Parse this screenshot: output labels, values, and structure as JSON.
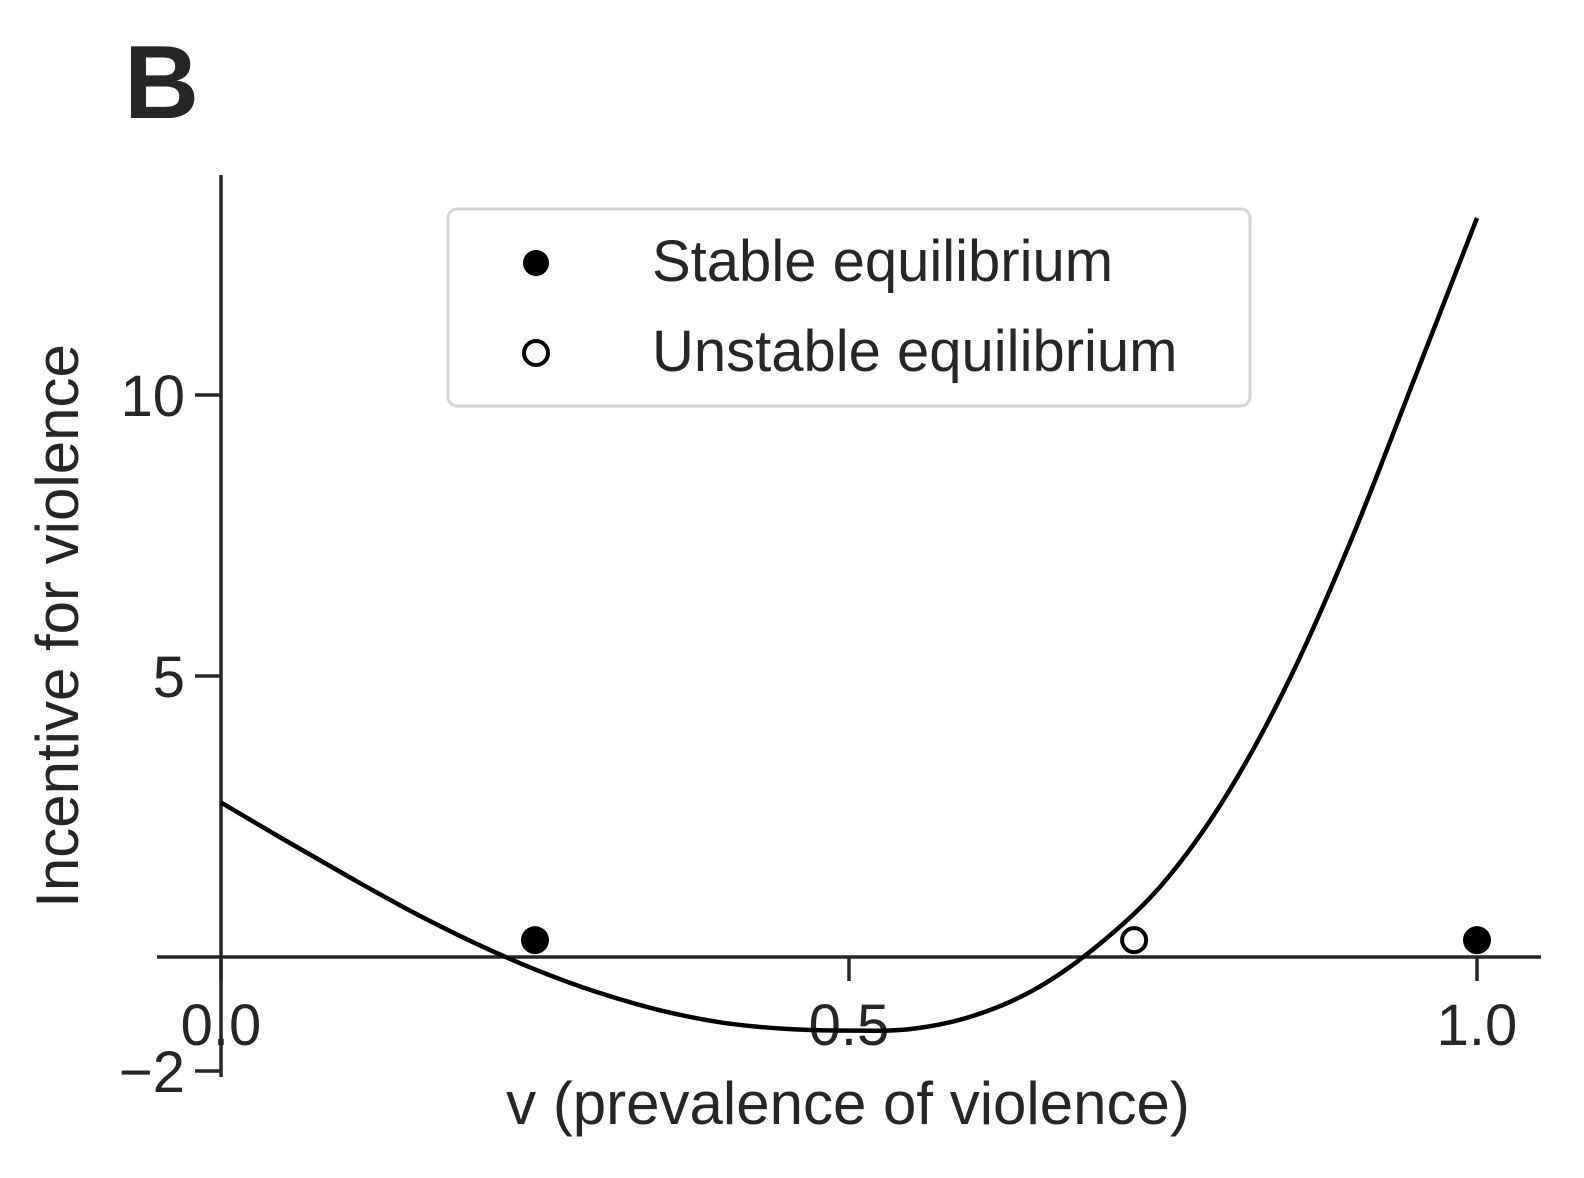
{
  "panel_label": "B",
  "chart_data": {
    "type": "line",
    "title": "",
    "xlabel": "v (prevalence of violence)",
    "ylabel": "Incentive for violence",
    "xlim": [
      -0.05,
      1.05
    ],
    "ylim": [
      -2.0,
      13.9
    ],
    "x_ticks": [
      0.0,
      0.5,
      1.0
    ],
    "x_tick_labels": [
      "0.0",
      "0.5",
      "1.0"
    ],
    "y_ticks": [
      -2,
      5,
      10
    ],
    "y_tick_labels": [
      "−2",
      "5",
      "10"
    ],
    "grid": false,
    "legend_position": "top-center",
    "series": [
      {
        "style": "line",
        "color": "#000000",
        "x": [
          0.0,
          0.05,
          0.1,
          0.15,
          0.2,
          0.25,
          0.3,
          0.35,
          0.4,
          0.45,
          0.5,
          0.55,
          0.6,
          0.65,
          0.7,
          0.75,
          0.8,
          0.85,
          0.9,
          0.95,
          1.0
        ],
        "y": [
          2.75,
          2.09,
          1.45,
          0.83,
          0.27,
          -0.22,
          -0.63,
          -0.95,
          -1.17,
          -1.28,
          -1.31,
          -1.28,
          -1.04,
          -0.55,
          0.24,
          1.31,
          2.86,
          4.91,
          7.43,
          10.28,
          13.15
        ]
      },
      {
        "name": "Stable equilibrium",
        "style": "filled-marker",
        "color": "#000000",
        "x": [
          0.25,
          1.0
        ],
        "y": [
          0.3,
          0.3
        ]
      },
      {
        "name": "Unstable equilibrium",
        "style": "open-marker",
        "color": "#000000",
        "x": [
          0.727
        ],
        "y": [
          0.3
        ]
      }
    ]
  }
}
